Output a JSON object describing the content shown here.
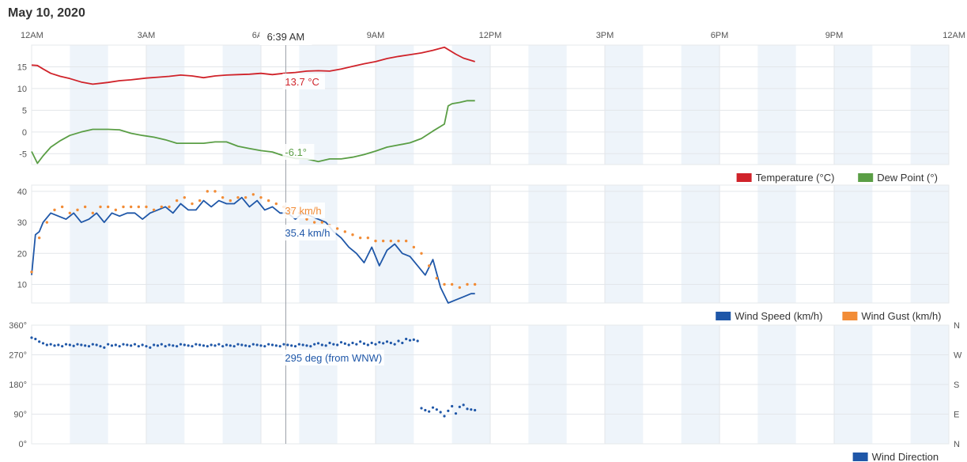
{
  "page": {
    "date_title": "May 10, 2020"
  },
  "crosshair": {
    "time_label": "6:39 AM"
  },
  "chart_data": [
    {
      "type": "line",
      "name": "temperature-dewpoint",
      "xlabel": "",
      "ylabel": "",
      "x_ticks": [
        "12AM",
        "3AM",
        "6AM",
        "9AM",
        "12PM",
        "3PM",
        "6PM",
        "9PM",
        "12AM"
      ],
      "x_range_hours": [
        0,
        24
      ],
      "ylim": [
        -7.5,
        20
      ],
      "y_ticks": [
        15,
        10,
        5,
        0,
        -5
      ],
      "y_tick_labels": [
        "15",
        "10",
        "5",
        "0",
        "-5"
      ],
      "grid": true,
      "legend": "bottom-right",
      "series": [
        {
          "name": "Temperature (°C)",
          "color": "#d0232a",
          "x": [
            0,
            0.15,
            0.3,
            0.5,
            0.75,
            1,
            1.3,
            1.6,
            2,
            2.3,
            2.6,
            3,
            3.3,
            3.6,
            3.9,
            4.2,
            4.5,
            4.8,
            5.1,
            5.4,
            5.7,
            6,
            6.3,
            6.6,
            6.9,
            7.2,
            7.5,
            7.8,
            8.1,
            8.4,
            8.7,
            9,
            9.3,
            9.6,
            9.9,
            10.2,
            10.5,
            10.8,
            11.1,
            11.3,
            11.6
          ],
          "y": [
            15.4,
            15.3,
            14.5,
            13.5,
            12.8,
            12.3,
            11.5,
            11.0,
            11.4,
            11.8,
            12.0,
            12.4,
            12.6,
            12.8,
            13.1,
            12.9,
            12.5,
            12.9,
            13.1,
            13.2,
            13.3,
            13.5,
            13.2,
            13.5,
            13.7,
            14.0,
            14.1,
            14.0,
            14.5,
            15.1,
            15.7,
            16.2,
            16.9,
            17.4,
            17.8,
            18.2,
            18.8,
            19.5,
            17.9,
            17.0,
            16.2
          ],
          "annotation": "13.7 °C"
        },
        {
          "name": "Dew Point (°)",
          "color": "#5a9e45",
          "x": [
            0,
            0.15,
            0.3,
            0.5,
            0.75,
            1,
            1.3,
            1.6,
            2,
            2.3,
            2.6,
            2.9,
            3.2,
            3.5,
            3.8,
            4.1,
            4.5,
            4.8,
            5.1,
            5.4,
            5.7,
            6,
            6.3,
            6.6,
            6.9,
            7.2,
            7.5,
            7.8,
            8.1,
            8.4,
            8.7,
            9,
            9.3,
            9.6,
            9.9,
            10.2,
            10.5,
            10.8,
            10.9,
            11.0,
            11.2,
            11.4,
            11.6
          ],
          "y": [
            -4.5,
            -7.2,
            -5.5,
            -3.5,
            -2.0,
            -0.8,
            0.0,
            0.6,
            0.6,
            0.5,
            -0.3,
            -0.8,
            -1.2,
            -1.8,
            -2.6,
            -2.6,
            -2.6,
            -2.3,
            -2.3,
            -3.3,
            -3.8,
            -4.3,
            -4.6,
            -5.5,
            -6.1,
            -6.2,
            -6.8,
            -6.2,
            -6.2,
            -5.8,
            -5.2,
            -4.4,
            -3.5,
            -3.0,
            -2.5,
            -1.5,
            0.2,
            1.8,
            6.0,
            6.5,
            6.8,
            7.2,
            7.2
          ],
          "annotation": "-6.1°"
        }
      ]
    },
    {
      "type": "line",
      "name": "wind",
      "xlabel": "",
      "ylabel": "",
      "x_range_hours": [
        0,
        24
      ],
      "ylim": [
        4,
        42
      ],
      "y_ticks": [
        40,
        30,
        20,
        10
      ],
      "y_tick_labels": [
        "40",
        "30",
        "20",
        "10"
      ],
      "grid": true,
      "legend": "bottom-right",
      "series": [
        {
          "name": "Wind Speed (km/h)",
          "color": "#1f57a8",
          "x": [
            0,
            0.1,
            0.2,
            0.3,
            0.5,
            0.7,
            0.9,
            1.1,
            1.3,
            1.5,
            1.7,
            1.9,
            2.1,
            2.3,
            2.5,
            2.7,
            2.9,
            3.1,
            3.3,
            3.5,
            3.7,
            3.9,
            4.1,
            4.3,
            4.5,
            4.7,
            4.9,
            5.1,
            5.3,
            5.5,
            5.7,
            5.9,
            6.1,
            6.3,
            6.5,
            6.7,
            6.9,
            7.1,
            7.3,
            7.5,
            7.7,
            7.9,
            8.1,
            8.3,
            8.5,
            8.7,
            8.9,
            9.1,
            9.3,
            9.5,
            9.7,
            9.9,
            10.1,
            10.3,
            10.5,
            10.7,
            10.9,
            11.1,
            11.3,
            11.5,
            11.6
          ],
          "y": [
            13,
            26,
            27,
            30,
            33,
            32,
            31,
            33,
            30,
            31,
            33,
            30,
            33,
            32,
            33,
            33,
            31,
            33,
            34,
            35,
            33,
            36,
            34,
            34,
            37,
            35,
            37,
            36,
            36,
            38,
            35,
            37,
            34,
            35,
            33,
            33,
            31,
            33,
            32,
            31,
            30,
            27,
            25,
            22,
            20,
            17,
            22,
            16,
            21,
            23,
            20,
            19,
            16,
            13,
            18,
            9,
            4,
            5,
            6,
            7,
            7
          ],
          "annotation": "35.4 km/h"
        },
        {
          "name": "Wind Gust (km/h)",
          "color": "#f28c36",
          "x": [
            0,
            0.2,
            0.4,
            0.6,
            0.8,
            1.0,
            1.2,
            1.4,
            1.6,
            1.8,
            2.0,
            2.2,
            2.4,
            2.6,
            2.8,
            3.0,
            3.2,
            3.4,
            3.6,
            3.8,
            4.0,
            4.2,
            4.4,
            4.6,
            4.8,
            5.0,
            5.2,
            5.4,
            5.6,
            5.8,
            6.0,
            6.2,
            6.4,
            6.6,
            6.8,
            7.0,
            7.2,
            7.4,
            7.6,
            7.8,
            8.0,
            8.2,
            8.4,
            8.6,
            8.8,
            9.0,
            9.2,
            9.4,
            9.6,
            9.8,
            10.0,
            10.2,
            10.4,
            10.6,
            10.8,
            11.0,
            11.2,
            11.4,
            11.6
          ],
          "y": [
            14,
            25,
            30,
            34,
            35,
            33,
            34,
            35,
            33,
            35,
            35,
            34,
            35,
            35,
            35,
            35,
            34,
            35,
            35,
            37,
            38,
            36,
            37,
            40,
            40,
            38,
            37,
            38,
            38,
            39,
            38,
            37,
            36,
            35,
            34,
            33,
            31,
            30,
            30,
            29,
            28,
            27,
            26,
            25,
            25,
            24,
            24,
            24,
            24,
            24,
            22,
            20,
            16,
            12,
            10,
            10,
            9,
            10,
            10
          ],
          "annotation": "37 km/h"
        }
      ]
    },
    {
      "type": "scatter",
      "name": "wind-direction",
      "xlabel": "",
      "ylabel": "",
      "x_range_hours": [
        0,
        24
      ],
      "ylim": [
        0,
        360
      ],
      "y_ticks": [
        360,
        270,
        180,
        90,
        0
      ],
      "y_tick_labels": [
        "360°",
        "270°",
        "180°",
        "90°",
        "0°"
      ],
      "right_ticks": [
        "N",
        "W",
        "S",
        "E",
        "N"
      ],
      "grid": true,
      "legend": "bottom-right",
      "series": [
        {
          "name": "Wind Direction",
          "color": "#1f57a8",
          "x": [
            0,
            0.1,
            0.2,
            0.3,
            0.4,
            0.5,
            0.6,
            0.7,
            0.8,
            0.9,
            1.0,
            1.1,
            1.2,
            1.3,
            1.4,
            1.5,
            1.6,
            1.7,
            1.8,
            1.9,
            2.0,
            2.1,
            2.2,
            2.3,
            2.4,
            2.5,
            2.6,
            2.7,
            2.8,
            2.9,
            3.0,
            3.1,
            3.2,
            3.3,
            3.4,
            3.5,
            3.6,
            3.7,
            3.8,
            3.9,
            4.0,
            4.1,
            4.2,
            4.3,
            4.4,
            4.5,
            4.6,
            4.7,
            4.8,
            4.9,
            5.0,
            5.1,
            5.2,
            5.3,
            5.4,
            5.5,
            5.6,
            5.7,
            5.8,
            5.9,
            6.0,
            6.1,
            6.2,
            6.3,
            6.4,
            6.5,
            6.6,
            6.7,
            6.8,
            6.9,
            7.0,
            7.1,
            7.2,
            7.3,
            7.4,
            7.5,
            7.6,
            7.7,
            7.8,
            7.9,
            8.0,
            8.1,
            8.2,
            8.3,
            8.4,
            8.5,
            8.6,
            8.7,
            8.8,
            8.9,
            9.0,
            9.1,
            9.2,
            9.3,
            9.4,
            9.5,
            9.6,
            9.7,
            9.8,
            9.9,
            10.0,
            10.1,
            10.2,
            10.3,
            10.4,
            10.5,
            10.6,
            10.7,
            10.8,
            10.9,
            11.0,
            11.1,
            11.2,
            11.3,
            11.4,
            11.5,
            11.6
          ],
          "y": [
            322,
            318,
            310,
            305,
            300,
            302,
            298,
            300,
            296,
            302,
            300,
            297,
            302,
            300,
            298,
            296,
            302,
            300,
            296,
            292,
            302,
            298,
            300,
            296,
            302,
            300,
            298,
            302,
            296,
            300,
            296,
            292,
            300,
            298,
            302,
            296,
            300,
            298,
            296,
            302,
            300,
            298,
            296,
            302,
            300,
            298,
            296,
            300,
            298,
            302,
            296,
            300,
            298,
            296,
            302,
            300,
            298,
            296,
            302,
            300,
            298,
            296,
            302,
            300,
            298,
            296,
            302,
            300,
            298,
            296,
            302,
            300,
            298,
            296,
            302,
            305,
            300,
            298,
            306,
            302,
            300,
            308,
            304,
            300,
            306,
            302,
            310,
            304,
            300,
            306,
            302,
            308,
            305,
            310,
            306,
            302,
            312,
            306,
            318,
            314,
            316,
            312,
            108,
            102,
            98,
            110,
            104,
            96,
            84,
            100,
            114,
            92,
            112,
            118,
            106,
            104,
            102
          ],
          "annotation": "295 deg (from WNW)"
        }
      ]
    }
  ]
}
